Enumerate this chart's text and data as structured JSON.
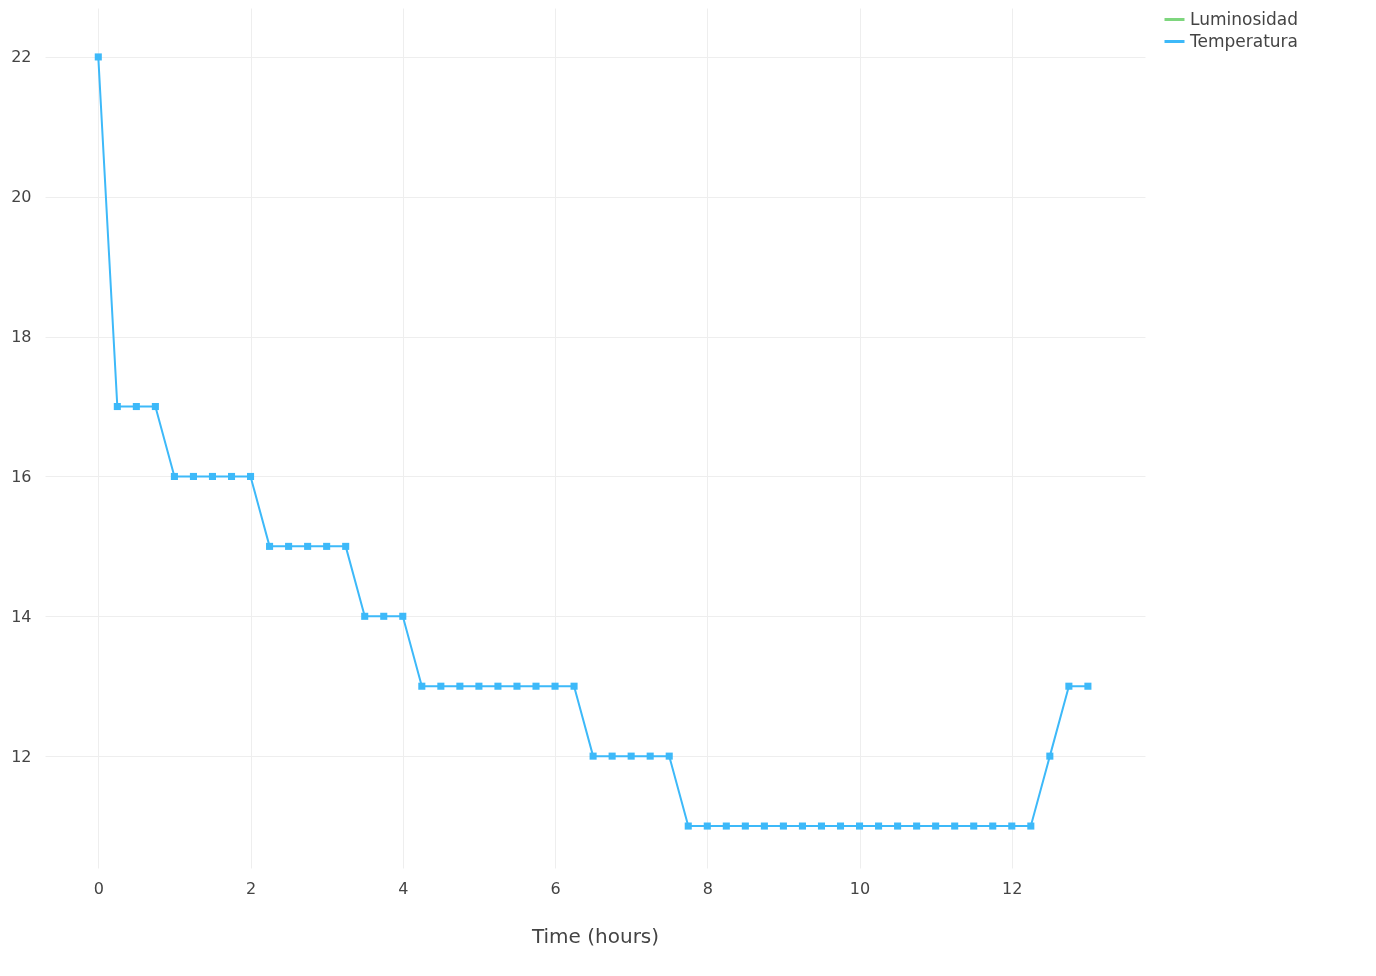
{
  "chart_data": {
    "type": "line",
    "xlabel": "Time (hours)",
    "x": [
      0,
      0.25,
      0.5,
      0.75,
      1,
      1.25,
      1.5,
      1.75,
      2,
      2.25,
      2.5,
      2.75,
      3,
      3.25,
      3.5,
      3.75,
      4,
      4.25,
      4.5,
      4.75,
      5,
      5.25,
      5.5,
      5.75,
      6,
      6.25,
      6.5,
      6.75,
      7,
      7.25,
      7.5,
      7.75,
      8,
      8.25,
      8.5,
      8.75,
      9,
      9.25,
      9.5,
      9.75,
      10,
      10.25,
      10.5,
      10.75,
      11,
      11.25,
      11.5,
      11.75,
      12,
      12.25,
      12.5,
      12.75,
      13
    ],
    "series": [
      {
        "name": "Luminosidad",
        "color": "#7ed67e",
        "values": [
          null,
          null,
          null,
          null,
          null,
          null,
          null,
          null,
          null,
          null,
          null,
          null,
          null,
          null,
          null,
          null,
          null,
          null,
          null,
          null,
          null,
          null,
          null,
          null,
          null,
          null,
          null,
          null,
          null,
          null,
          null,
          null,
          null,
          null,
          null,
          null,
          null,
          null,
          null,
          null,
          null,
          null,
          null,
          null,
          null,
          null,
          null,
          null,
          null,
          null,
          null,
          null,
          null
        ]
      },
      {
        "name": "Temperatura",
        "color": "#3db9f9",
        "values": [
          22,
          17,
          17,
          17,
          16,
          16,
          16,
          16,
          16,
          15,
          15,
          15,
          15,
          15,
          14,
          14,
          14,
          13,
          13,
          13,
          13,
          13,
          13,
          13,
          13,
          13,
          12,
          12,
          12,
          12,
          12,
          11,
          11,
          11,
          11,
          11,
          11,
          11,
          11,
          11,
          11,
          11,
          11,
          11,
          11,
          11,
          11,
          11,
          11,
          11,
          12,
          13,
          13
        ]
      }
    ],
    "xlim": [
      -0.7,
      13.75
    ],
    "xticks": [
      0,
      2,
      4,
      6,
      8,
      10,
      12
    ],
    "ylim": [
      10.4,
      22.7
    ],
    "yticks": [
      12,
      14,
      16,
      18,
      20,
      22
    ],
    "grid": true,
    "legend": "top right",
    "marker": "square",
    "line_style": "solid"
  }
}
